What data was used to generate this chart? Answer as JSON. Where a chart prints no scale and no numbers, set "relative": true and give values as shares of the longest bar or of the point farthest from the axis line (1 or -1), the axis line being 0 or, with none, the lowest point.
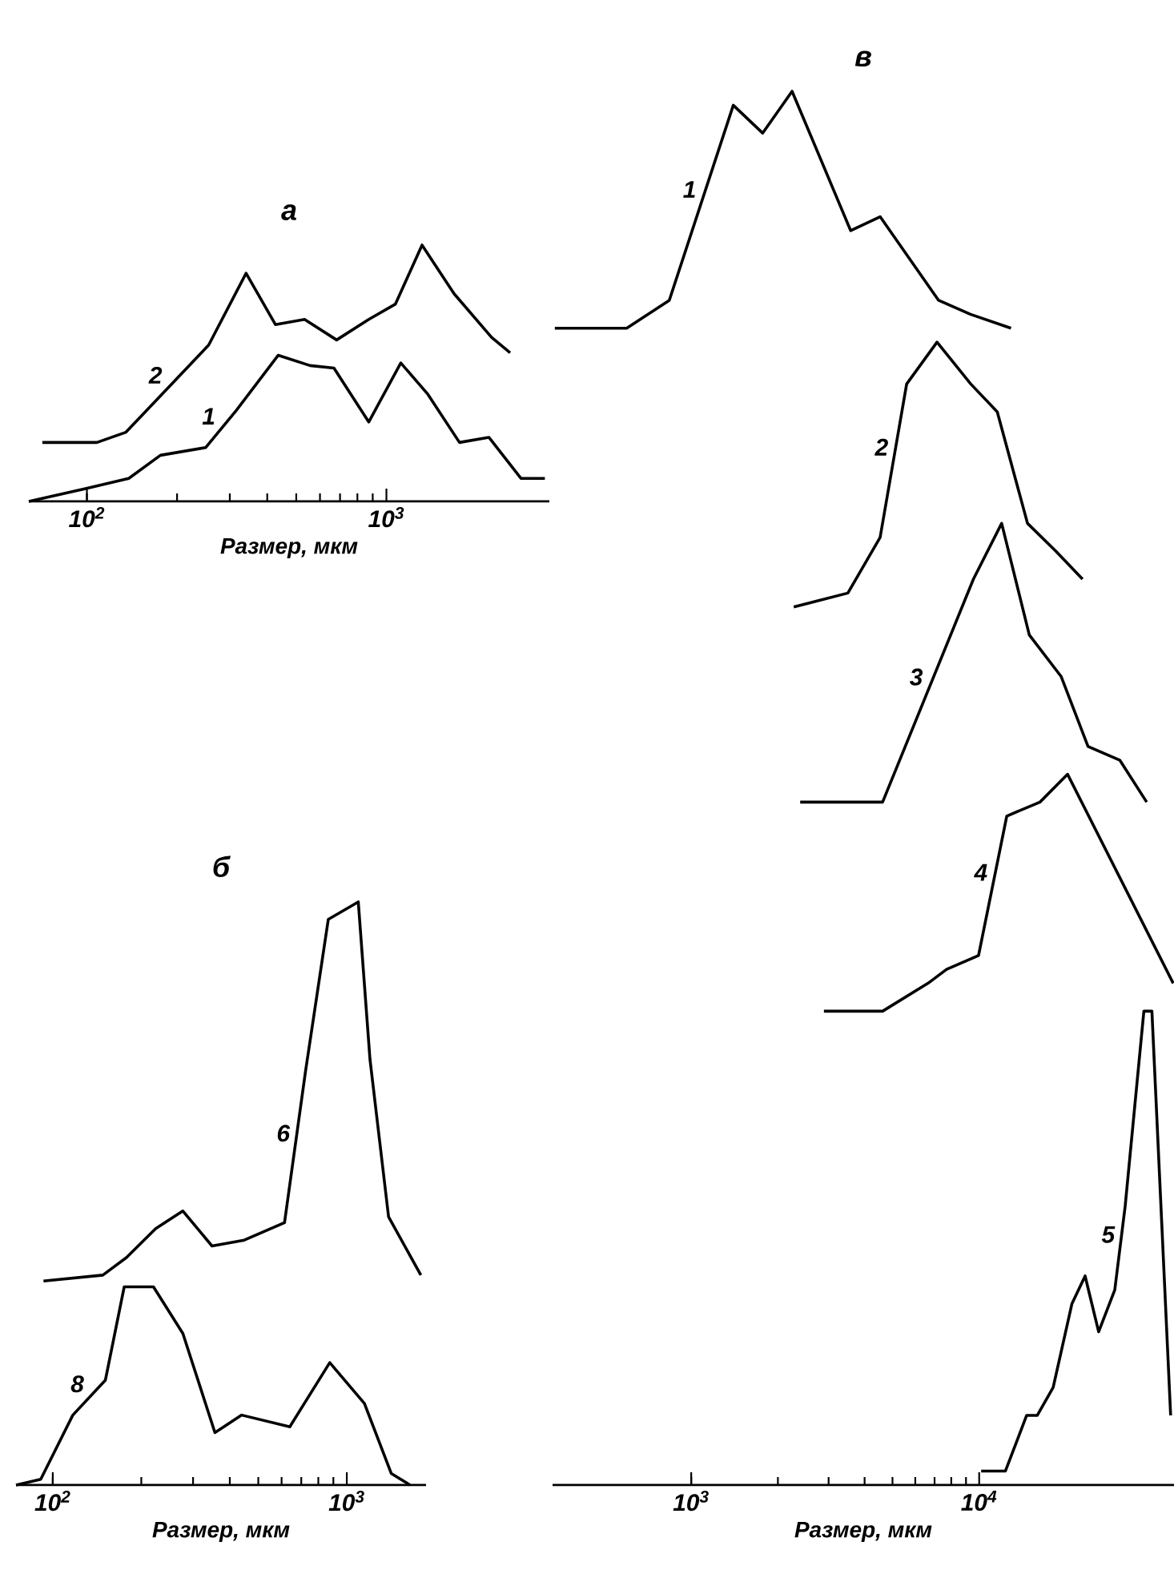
{
  "chart_data": [
    {
      "type": "line",
      "title": "а",
      "xlabel": "Размер, мкм",
      "log": "x",
      "relative": true,
      "tick_labels": "x",
      "legend": false,
      "xlim": [
        64,
        3500
      ],
      "xticks": [
        {
          "value": 100,
          "label": "10$^{2}$"
        },
        {
          "value": 1000,
          "label": "10$^{3}$"
        }
      ],
      "series": [
        {
          "name": "2",
          "color": "#000000",
          "x": [
            71,
            108,
            135,
            255,
            340,
            426,
            533,
            682,
            873,
            1072,
            1315,
            1683,
            2244,
            2588
          ],
          "values": [
            0.23,
            0.23,
            0.27,
            0.61,
            0.89,
            0.69,
            0.71,
            0.63,
            0.71,
            0.77,
            1.0,
            0.81,
            0.64,
            0.58
          ]
        },
        {
          "name": "1",
          "color": "#000000",
          "x": [
            64,
            99,
            138,
            176,
            249,
            313,
            435,
            556,
            668,
            873,
            1117,
            1371,
            1754,
            2198,
            2812,
            3381
          ],
          "values": [
            0.0,
            0.05,
            0.09,
            0.18,
            0.21,
            0.35,
            0.57,
            0.53,
            0.52,
            0.31,
            0.54,
            0.42,
            0.23,
            0.25,
            0.09,
            0.09
          ]
        }
      ]
    },
    {
      "type": "line",
      "title": "б",
      "xlabel": "Размер, мкм",
      "log": "x",
      "relative": true,
      "tick_labels": "x",
      "legend": false,
      "xlim": [
        75,
        1860
      ],
      "xticks": [
        {
          "value": 100,
          "label": "10$^{2}$"
        },
        {
          "value": 1000,
          "label": "10$^{3}$"
        }
      ],
      "series": [
        {
          "name": "6",
          "color": "#000000",
          "x": [
            93,
            148,
            178,
            224,
            277,
            348,
            448,
            614,
            724,
            865,
            1094,
            1199,
            1387,
            1786
          ],
          "values": [
            0.35,
            0.36,
            0.39,
            0.44,
            0.47,
            0.41,
            0.42,
            0.45,
            0.71,
            0.97,
            1.0,
            0.73,
            0.46,
            0.36
          ]
        },
        {
          "name": "8",
          "color": "#000000",
          "x": [
            75,
            91,
            117,
            151,
            175,
            220,
            277,
            356,
            439,
            640,
            875,
            1148,
            1416,
            1641
          ],
          "values": [
            0.0,
            0.01,
            0.12,
            0.18,
            0.34,
            0.34,
            0.26,
            0.09,
            0.12,
            0.1,
            0.21,
            0.14,
            0.02,
            0.0
          ]
        }
      ]
    },
    {
      "type": "line",
      "title": "в",
      "xlabel": "Размер, мкм",
      "log": "x",
      "relative": true,
      "tick_labels": "x",
      "legend": false,
      "xlim": [
        330,
        47500
      ],
      "xticks": [
        {
          "value": 1000,
          "label": "10$^{3}$"
        },
        {
          "value": 10000,
          "label": "10$^{4}$"
        }
      ],
      "series": [
        {
          "name": "1",
          "color": "#000000",
          "x": [
            336,
            597,
            839,
            1400,
            1770,
            2240,
            3580,
            4530,
            7230,
            9330,
            12900
          ],
          "values": [
            0.83,
            0.83,
            0.85,
            0.99,
            0.97,
            1.0,
            0.9,
            0.91,
            0.85,
            0.84,
            0.83
          ]
        },
        {
          "name": "2",
          "color": "#000000",
          "x": [
            2270,
            3500,
            4530,
            5600,
            7140,
            9350,
            11560,
            14720,
            18490,
            22860
          ],
          "values": [
            0.63,
            0.64,
            0.68,
            0.79,
            0.82,
            0.79,
            0.77,
            0.69,
            0.67,
            0.65
          ]
        },
        {
          "name": "3",
          "color": "#000000",
          "x": [
            2390,
            3500,
            4620,
            9550,
            11970,
            14930,
            19280,
            23880,
            30830,
            38190
          ],
          "values": [
            0.49,
            0.49,
            0.49,
            0.65,
            0.69,
            0.61,
            0.58,
            0.53,
            0.52,
            0.49
          ]
        },
        {
          "name": "4",
          "color": "#000000",
          "x": [
            2890,
            4620,
            6640,
            7710,
            9950,
            12470,
            16260,
            20280,
            47210
          ],
          "values": [
            0.34,
            0.34,
            0.36,
            0.37,
            0.38,
            0.48,
            0.49,
            0.51,
            0.36
          ]
        },
        {
          "name": "5",
          "color": "#000000",
          "x": [
            10160,
            12330,
            14620,
            15920,
            18070,
            20990,
            23330,
            26000,
            29580,
            32140,
            37330,
            39810,
            46240
          ],
          "values": [
            0.01,
            0.01,
            0.05,
            0.05,
            0.07,
            0.13,
            0.15,
            0.11,
            0.14,
            0.2,
            0.34,
            0.34,
            0.05
          ]
        }
      ]
    }
  ]
}
